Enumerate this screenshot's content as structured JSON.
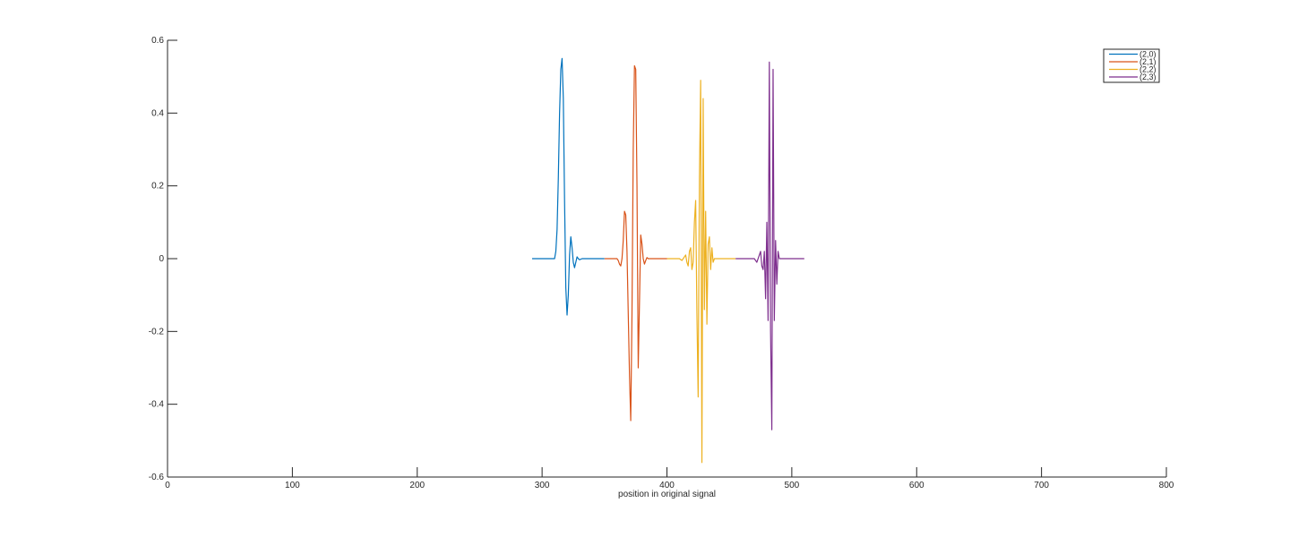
{
  "chart_data": {
    "type": "line",
    "title": "",
    "xlabel": "position in original signal",
    "ylabel": "",
    "xlim": [
      0,
      800
    ],
    "ylim": [
      -0.6,
      0.6
    ],
    "xticks": [
      0,
      100,
      200,
      300,
      400,
      500,
      600,
      700,
      800
    ],
    "yticks": [
      -0.6,
      -0.4,
      -0.2,
      0,
      0.2,
      0.4,
      0.6
    ],
    "xtick_labels": [
      "0",
      "100",
      "200",
      "300",
      "400",
      "500",
      "600",
      "700",
      "800"
    ],
    "ytick_labels": [
      "-0.6",
      "-0.4",
      "-0.2",
      "0",
      "0.2",
      "0.4",
      "0.6"
    ],
    "grid": false,
    "legend_position": "top-right",
    "series": [
      {
        "name": "(2,0)",
        "color": "#0072BD",
        "x": [
          292,
          296,
          300,
          304,
          308,
          310,
          311,
          312,
          313,
          314,
          315,
          316,
          317,
          318,
          319,
          320,
          321,
          322,
          323,
          324,
          325,
          326,
          327,
          328,
          329,
          330,
          332,
          336,
          340,
          345,
          350
        ],
        "y": [
          0,
          0,
          0,
          0,
          0,
          0.0,
          0.02,
          0.08,
          0.22,
          0.4,
          0.52,
          0.55,
          0.44,
          0.16,
          -0.08,
          -0.155,
          -0.1,
          0.01,
          0.06,
          0.03,
          -0.01,
          -0.025,
          -0.01,
          0.005,
          0.0,
          -0.003,
          0,
          0,
          0,
          0,
          0
        ]
      },
      {
        "name": "(2,1)",
        "color": "#D95319",
        "x": [
          350,
          354,
          358,
          360,
          361,
          362,
          363,
          364,
          365,
          366,
          367,
          368,
          369,
          370,
          371,
          372,
          373,
          374,
          375,
          376,
          377,
          378,
          379,
          380,
          381,
          382,
          383,
          384,
          385,
          386,
          388,
          392,
          396,
          400
        ],
        "y": [
          0,
          0,
          0,
          0.0,
          -0.005,
          -0.015,
          -0.02,
          0.0,
          0.05,
          0.13,
          0.12,
          0.02,
          -0.15,
          -0.32,
          -0.445,
          -0.15,
          0.3,
          0.53,
          0.52,
          0.2,
          -0.3,
          -0.12,
          0.065,
          0.04,
          0.0,
          -0.015,
          -0.005,
          0.003,
          0,
          0,
          0,
          0,
          0,
          0
        ]
      },
      {
        "name": "(2,2)",
        "color": "#EDB120",
        "x": [
          400,
          405,
          410,
          412,
          413,
          414,
          415,
          416,
          417,
          418,
          419,
          420,
          421,
          422,
          423,
          424,
          425,
          426,
          427,
          428,
          429,
          430,
          431,
          432,
          433,
          434,
          435,
          436,
          437,
          438,
          440,
          445,
          450,
          455
        ],
        "y": [
          0,
          0,
          0,
          -0.005,
          0.0,
          0.005,
          0.01,
          -0.01,
          -0.02,
          0.02,
          0.03,
          -0.03,
          -0.01,
          0.1,
          0.16,
          -0.15,
          -0.38,
          0.22,
          0.49,
          -0.56,
          0.44,
          -0.14,
          0.13,
          -0.18,
          0.04,
          0.06,
          -0.03,
          0.03,
          -0.01,
          0.0,
          0,
          0,
          0,
          0
        ]
      },
      {
        "name": "(2,3)",
        "color": "#7E2F8E",
        "x": [
          455,
          460,
          465,
          470,
          472,
          474,
          475,
          476,
          477,
          478,
          479,
          480,
          481,
          482,
          483,
          484,
          485,
          486,
          487,
          488,
          489,
          490,
          491,
          492,
          494,
          498,
          502,
          506,
          510
        ],
        "y": [
          0,
          0,
          0,
          0,
          -0.01,
          0.01,
          0.02,
          -0.02,
          -0.03,
          0.02,
          -0.11,
          0.1,
          -0.17,
          0.54,
          -0.2,
          -0.47,
          0.52,
          -0.17,
          0.05,
          -0.07,
          0.02,
          0.0,
          0,
          0,
          0,
          0,
          0,
          0,
          0
        ]
      }
    ]
  }
}
